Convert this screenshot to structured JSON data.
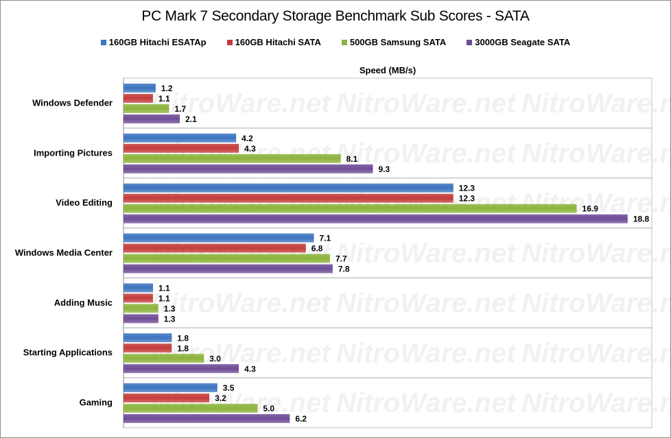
{
  "chart_data": {
    "type": "bar",
    "orientation": "horizontal",
    "title": "PC Mark 7 Secondary Storage Benchmark Sub Scores - SATA",
    "xlabel": "Speed (MB/s)",
    "ylabel": "",
    "xlim": [
      0,
      19.7
    ],
    "grid": false,
    "legend_position": "top",
    "categories": [
      "Windows Defender",
      "Importing Pictures",
      "Video Editing",
      "Windows Media Center",
      "Adding Music",
      "Starting Applications",
      "Gaming"
    ],
    "series": [
      {
        "name": "160GB Hitachi ESATAp",
        "color": "#3c74c0",
        "values": [
          1.2,
          4.2,
          12.3,
          7.1,
          1.1,
          1.8,
          3.5
        ]
      },
      {
        "name": "160GB Hitachi SATA",
        "color": "#c43c3a",
        "values": [
          1.1,
          4.3,
          12.3,
          6.8,
          1.1,
          1.8,
          3.2
        ]
      },
      {
        "name": "500GB Samsung SATA",
        "color": "#8cb43c",
        "values": [
          1.7,
          8.1,
          16.9,
          7.7,
          1.3,
          3.0,
          5.0
        ]
      },
      {
        "name": "3000GB Seagate SATA",
        "color": "#6e4c96",
        "values": [
          2.1,
          9.3,
          18.8,
          7.8,
          1.3,
          4.3,
          6.2
        ]
      }
    ],
    "watermark": "NitroWare.net"
  }
}
